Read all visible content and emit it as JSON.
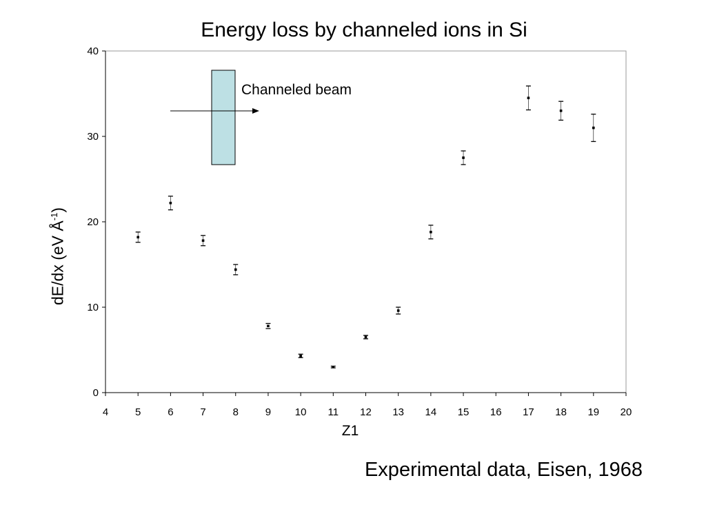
{
  "chart_data": {
    "type": "scatter",
    "title": "Energy loss by channeled ions in Si",
    "xlabel": "Z1",
    "ylabel": {
      "text": "dE/dx (eV Å",
      "sup": "-1",
      "close": ")"
    },
    "xlim": [
      4,
      20
    ],
    "ylim": [
      0,
      40
    ],
    "x_ticks": [
      4,
      5,
      6,
      7,
      8,
      9,
      10,
      11,
      12,
      13,
      14,
      15,
      16,
      17,
      18,
      19,
      20
    ],
    "y_ticks": [
      0,
      10,
      20,
      30,
      40
    ],
    "grid": false,
    "legend": "none",
    "marker_color": "#000000",
    "series": [
      {
        "points": [
          {
            "x": 5,
            "y": 18.2,
            "err": 0.6
          },
          {
            "x": 6,
            "y": 22.2,
            "err": 0.8
          },
          {
            "x": 7,
            "y": 17.8,
            "err": 0.6
          },
          {
            "x": 8,
            "y": 14.4,
            "err": 0.6
          },
          {
            "x": 9,
            "y": 7.8,
            "err": 0.3
          },
          {
            "x": 10,
            "y": 4.3,
            "err": 0.2
          },
          {
            "x": 11,
            "y": 3.0,
            "err": 0.1
          },
          {
            "x": 12,
            "y": 6.5,
            "err": 0.2
          },
          {
            "x": 13,
            "y": 9.6,
            "err": 0.4
          },
          {
            "x": 14,
            "y": 18.8,
            "err": 0.8
          },
          {
            "x": 15,
            "y": 27.5,
            "err": 0.8
          },
          {
            "x": 17,
            "y": 34.5,
            "err": 1.4
          },
          {
            "x": 18,
            "y": 33.0,
            "err": 1.1
          },
          {
            "x": 19,
            "y": 31.0,
            "err": 1.6
          }
        ]
      }
    ],
    "annotation": {
      "label": "Channeled beam",
      "box_color": "#bde0e4",
      "arrow_icon": "arrow-right-icon"
    }
  },
  "footer": {
    "credit": "Experimental data, Eisen, 1968"
  }
}
